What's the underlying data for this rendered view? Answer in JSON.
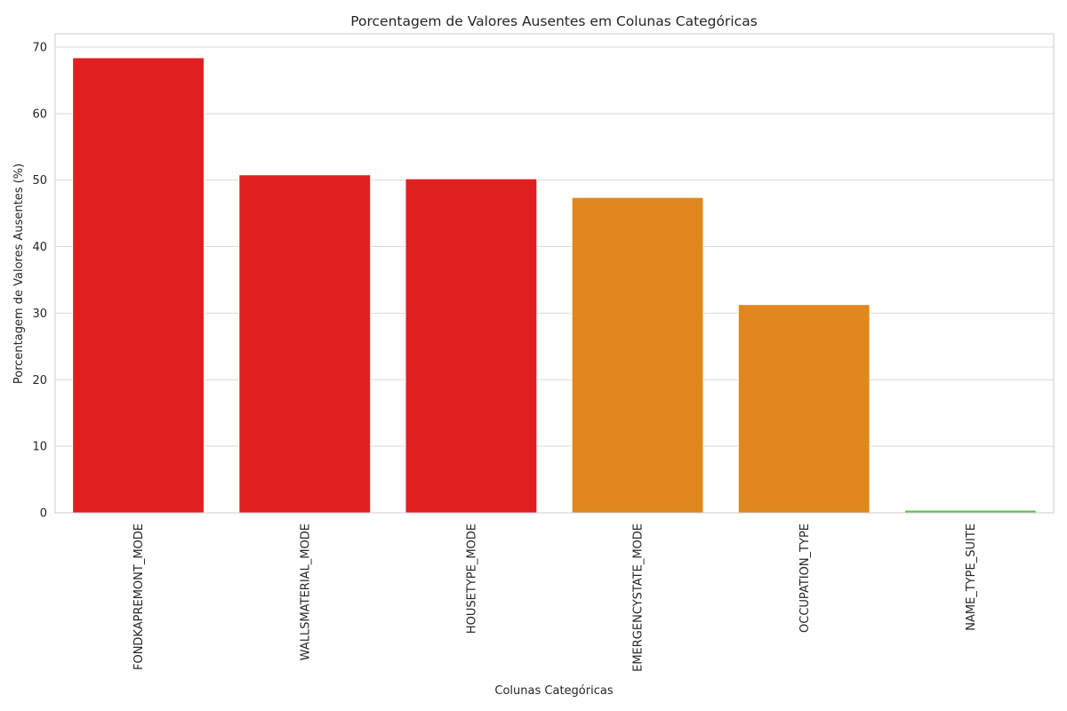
{
  "chart_data": {
    "type": "bar",
    "title": "Porcentagem de Valores Ausentes em Colunas Categóricas",
    "xlabel": "Colunas Categóricas",
    "ylabel": "Porcentagem de Valores Ausentes (%)",
    "categories": [
      "FONDKAPREMONT_MODE",
      "WALLSMATERIAL_MODE",
      "HOUSETYPE_MODE",
      "EMERGENCYSTATE_MODE",
      "OCCUPATION_TYPE",
      "NAME_TYPE_SUITE"
    ],
    "values": [
      68.4,
      50.8,
      50.2,
      47.4,
      31.3,
      0.4
    ],
    "colors": [
      "#e01f21",
      "#e01f21",
      "#e01f21",
      "#e0881d",
      "#e0881d",
      "#5ec04f"
    ],
    "ylim": [
      0,
      72
    ],
    "yticks": [
      0,
      10,
      20,
      30,
      40,
      50,
      60,
      70
    ],
    "grid": "horizontal",
    "legend": "none"
  }
}
